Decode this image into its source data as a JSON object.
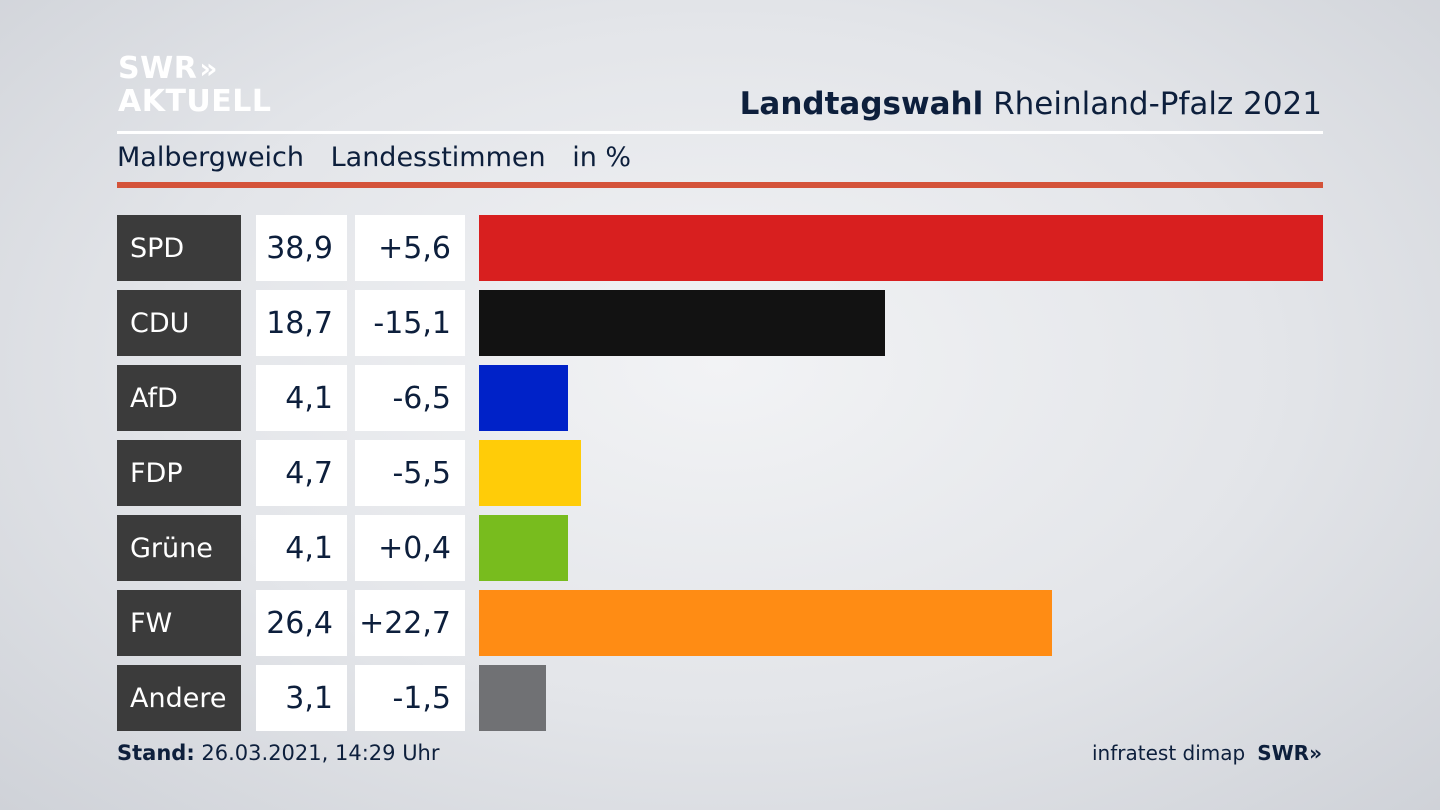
{
  "logo": {
    "line1": "SWR",
    "line1_chevrons": "»",
    "line2": "AKTUELL"
  },
  "header": {
    "title_bold": "Landtagswahl",
    "title_regular": "Rheinland-Pfalz 2021"
  },
  "subheader": {
    "region": "Malbergweich",
    "vote_type": "Landesstimmen",
    "unit": "in %"
  },
  "chart_data": {
    "type": "bar",
    "orientation": "horizontal",
    "categories": [
      "SPD",
      "CDU",
      "AfD",
      "FDP",
      "Grüne",
      "FW",
      "Andere"
    ],
    "values": [
      38.9,
      18.7,
      4.1,
      4.7,
      4.1,
      26.4,
      3.1
    ],
    "value_labels": [
      "38,9",
      "18,7",
      "4,1",
      "4,7",
      "4,1",
      "26,4",
      "3,1"
    ],
    "change_labels": [
      "+5,6",
      "-15,1",
      "-6,5",
      "-5,5",
      "+0,4",
      "+22,7",
      "-1,5"
    ],
    "changes": [
      5.6,
      -15.1,
      -6.5,
      -5.5,
      0.4,
      22.7,
      -1.5
    ],
    "colors": [
      "#d81f1f",
      "#121212",
      "#0022c8",
      "#ffcc08",
      "#78bc1e",
      "#ff8c14",
      "#707174"
    ]
  },
  "footer": {
    "stand_label": "Stand:",
    "stand_value": "26.03.2021, 14:29 Uhr",
    "source": "infratest dimap",
    "brand": "SWR",
    "brand_chevrons": "»"
  }
}
